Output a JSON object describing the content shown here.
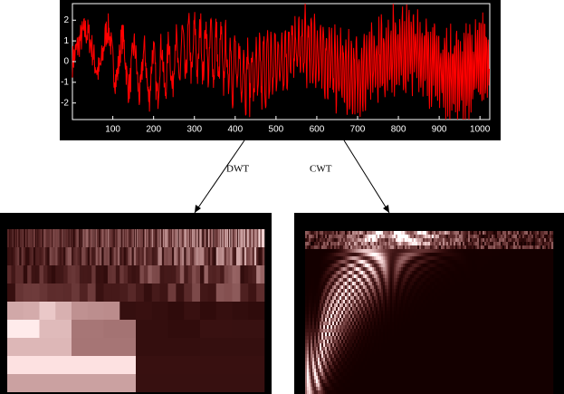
{
  "signal_plot": {
    "xlim": [
      1,
      1024
    ],
    "ylim": [
      -2.8,
      2.8
    ],
    "xticks": [
      100,
      200,
      300,
      400,
      500,
      600,
      700,
      800,
      900,
      1000
    ],
    "yticks": [
      2,
      1,
      0,
      -1,
      -2
    ]
  },
  "arrows": [
    {
      "label": "DWT"
    },
    {
      "label": "CWT"
    }
  ]
}
